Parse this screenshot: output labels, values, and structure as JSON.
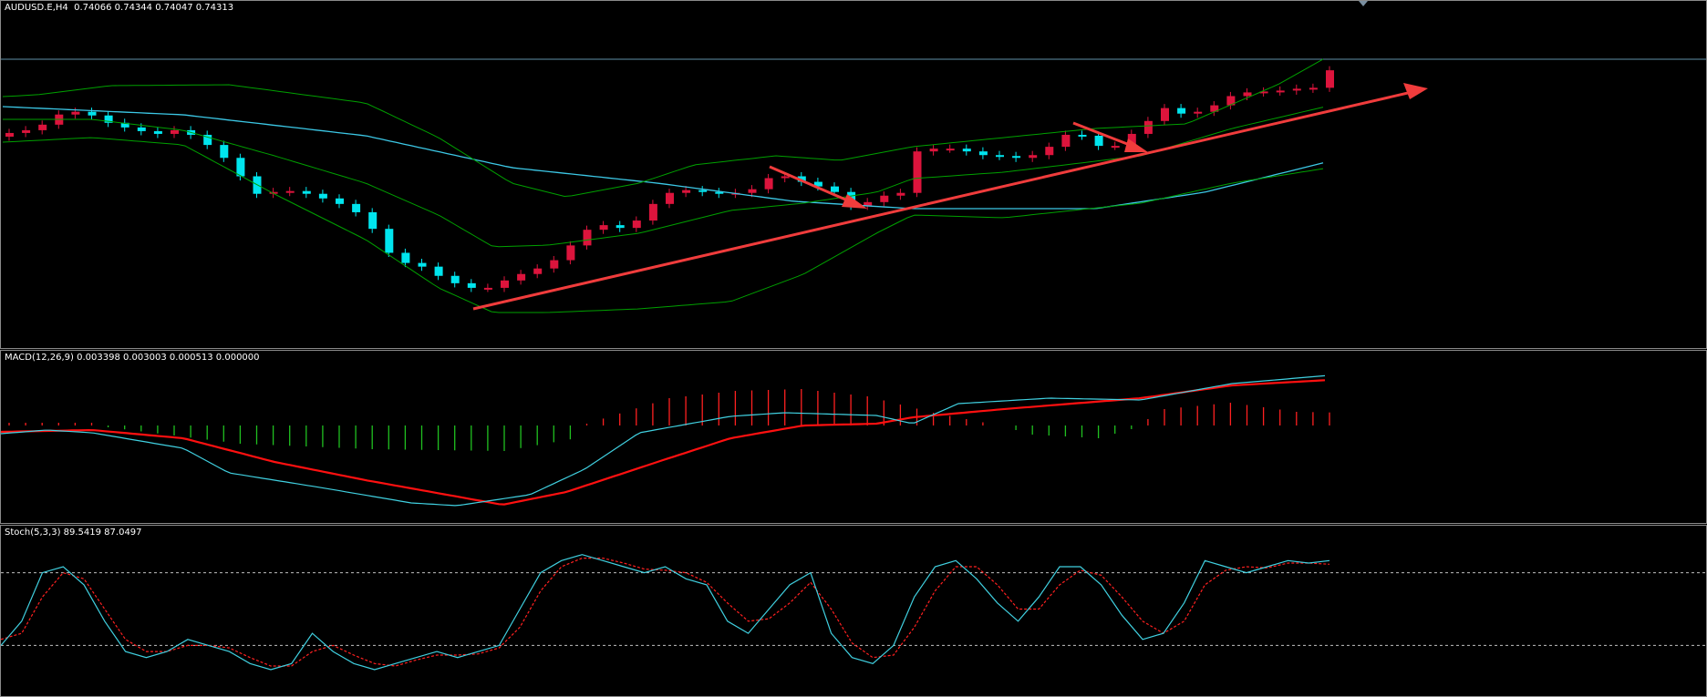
{
  "main": {
    "label": "AUDUSD.E,H4  0.74066 0.74344 0.74047 0.74313",
    "symbol": "AUDUSD.E,H4",
    "ohlc_text": "0.74066 0.74344 0.74047 0.74313"
  },
  "macd": {
    "label": "MACD(12,26,9) 0.003398 0.003003 0.000513 0.000000"
  },
  "stoch": {
    "label": "Stoch(5,3,3) 89.5419 87.0497"
  },
  "colors": {
    "bull": "#dc143c",
    "bear": "#00e5ee",
    "bb": "#00a000",
    "ma": "#3cc8e6",
    "trend": "#f03c3c",
    "macd_signal": "#ff1010",
    "macd_line": "#40d0e0",
    "hist_pos": "#ff2020",
    "hist_neg": "#20c020",
    "stoch_main": "#40d0e0",
    "stoch_signal": "#ff2020",
    "level": "#c0c0c0"
  },
  "chart_data": [
    {
      "type": "candlestick",
      "title": "AUDUSD.E,H4",
      "last_ohlc": {
        "open": 0.74066,
        "high": 0.74344,
        "low": 0.74047,
        "close": 0.74313
      },
      "close_series": [
        0.7315,
        0.7318,
        0.7324,
        0.7335,
        0.7338,
        0.7334,
        0.7326,
        0.7321,
        0.7317,
        0.7314,
        0.7318,
        0.7313,
        0.7302,
        0.7288,
        0.7268,
        0.7249,
        0.7251,
        0.7252,
        0.7249,
        0.7244,
        0.7238,
        0.7229,
        0.7211,
        0.7185,
        0.7174,
        0.717,
        0.716,
        0.7152,
        0.7147,
        0.7147,
        0.7155,
        0.7162,
        0.7168,
        0.7177,
        0.7193,
        0.721,
        0.7215,
        0.7212,
        0.722,
        0.7238,
        0.725,
        0.7253,
        0.7251,
        0.7249,
        0.725,
        0.7254,
        0.7266,
        0.7268,
        0.7262,
        0.7257,
        0.7251,
        0.7236,
        0.724,
        0.7247,
        0.725,
        0.7295,
        0.7298,
        0.7298,
        0.7295,
        0.7291,
        0.729,
        0.7288,
        0.7291,
        0.73,
        0.7313,
        0.7312,
        0.7301,
        0.7301,
        0.7314,
        0.7328,
        0.7342,
        0.7336,
        0.7338,
        0.7345,
        0.7355,
        0.7359,
        0.736,
        0.7361,
        0.7363,
        0.7364,
        0.7383
      ]
    },
    {
      "type": "line",
      "title": "MACD(12,26,9)",
      "values": {
        "macd": 0.003398,
        "signal": 0.003003,
        "osma": 0.000513,
        "extra": 0.0
      }
    },
    {
      "type": "line",
      "title": "Stoch(5,3,3)",
      "values": {
        "main": 89.5419,
        "signal": 87.0497
      },
      "levels": [
        80,
        20
      ],
      "main_series": [
        20,
        40,
        80,
        85,
        70,
        40,
        15,
        10,
        15,
        25,
        20,
        15,
        5,
        0,
        5,
        30,
        15,
        5,
        0,
        5,
        10,
        15,
        10,
        15,
        20,
        50,
        80,
        90,
        95,
        90,
        85,
        80,
        85,
        75,
        70,
        40,
        30,
        50,
        70,
        80,
        30,
        10,
        5,
        20,
        60,
        85,
        90,
        75,
        55,
        40,
        60,
        85,
        85,
        70,
        45,
        25,
        30,
        55,
        90,
        85,
        80,
        85,
        90,
        88,
        90
      ],
      "signal_series": [
        25,
        30,
        60,
        80,
        75,
        50,
        25,
        15,
        15,
        20,
        20,
        18,
        10,
        3,
        3,
        15,
        20,
        12,
        5,
        3,
        8,
        12,
        12,
        13,
        18,
        35,
        65,
        85,
        92,
        92,
        88,
        83,
        82,
        80,
        72,
        55,
        40,
        42,
        55,
        72,
        50,
        22,
        10,
        12,
        35,
        65,
        85,
        85,
        70,
        50,
        50,
        70,
        82,
        78,
        60,
        40,
        30,
        40,
        70,
        82,
        85,
        84,
        88,
        88,
        87
      ]
    }
  ]
}
